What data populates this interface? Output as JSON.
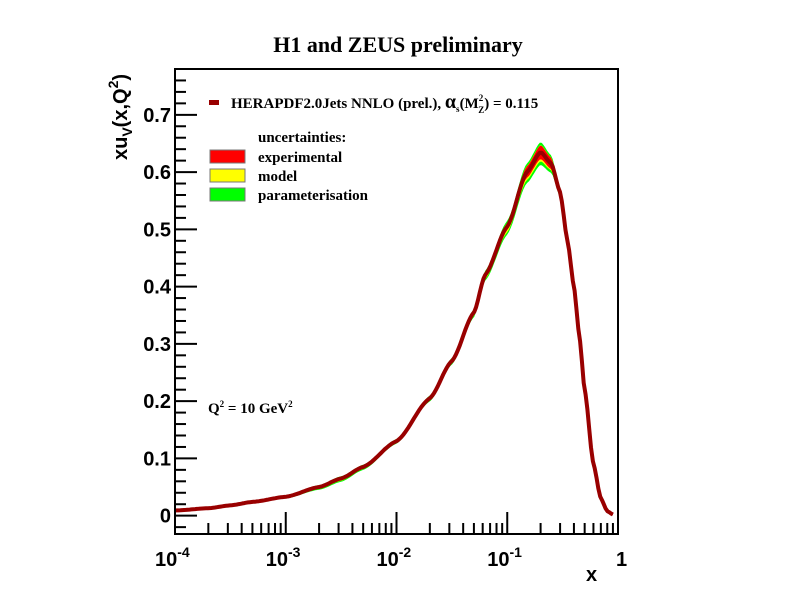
{
  "chart_data": {
    "type": "line",
    "title": "H1 and ZEUS preliminary",
    "xlabel": "x",
    "ylabel": "xu_V(x,Q^2)",
    "xscale": "log",
    "xlim": [
      0.0001,
      1
    ],
    "ylim": [
      -0.032,
      0.78
    ],
    "x_tick_labels": [
      {
        "value": 0.0001,
        "base": "10",
        "exp": "-4"
      },
      {
        "value": 0.001,
        "base": "10",
        "exp": "-3"
      },
      {
        "value": 0.01,
        "base": "10",
        "exp": "-2"
      },
      {
        "value": 0.1,
        "base": "10",
        "exp": "-1"
      },
      {
        "value": 1,
        "base": "1",
        "exp": ""
      }
    ],
    "y_ticks": [
      0,
      0.1,
      0.2,
      0.3,
      0.4,
      0.5,
      0.6,
      0.7
    ],
    "y_tick_labels": [
      "0",
      "0.1",
      "0.2",
      "0.3",
      "0.4",
      "0.5",
      "0.6",
      "0.7"
    ],
    "grid": false,
    "legend_position": "top-left",
    "legend": {
      "central_label_main": "HERAPDF2.0Jets NNLO (prel.), ",
      "central_label_alpha": "α",
      "central_label_sub_s": "s",
      "central_label_mz": "(M",
      "central_label_mz_sup": "2",
      "central_label_mz_sub": "Z",
      "central_label_tail": ") = 0.115",
      "uncertainties_header": "uncertainties:",
      "entries": [
        {
          "name": "experimental",
          "color": "#ff0000"
        },
        {
          "name": "model",
          "color": "#ffff00"
        },
        {
          "name": "parameterisation",
          "color": "#00ff00"
        }
      ]
    },
    "annotation": {
      "text_q": "Q",
      "sup1": "2",
      "text_mid": " = 10 GeV",
      "sup2": "2"
    },
    "colors": {
      "central": "#990000",
      "experimental": "#ff0000",
      "model": "#ffff00",
      "parameterisation": "#00ff00"
    },
    "series": [
      {
        "name": "central",
        "x": [
          0.0001,
          0.0002,
          0.000316,
          0.0005,
          0.001,
          0.002,
          0.00316,
          0.005,
          0.01,
          0.02,
          0.0316,
          0.05,
          0.063,
          0.1,
          0.15,
          0.2,
          0.25,
          0.3,
          0.35,
          0.4,
          0.45,
          0.5,
          0.6,
          0.7,
          0.8,
          0.9
        ],
        "y": [
          0.009,
          0.013,
          0.018,
          0.024,
          0.033,
          0.05,
          0.065,
          0.085,
          0.13,
          0.205,
          0.27,
          0.355,
          0.42,
          0.505,
          0.6,
          0.635,
          0.615,
          0.565,
          0.48,
          0.4,
          0.31,
          0.22,
          0.09,
          0.03,
          0.008,
          0.002
        ]
      },
      {
        "name": "experimental_band_halfwidth",
        "x": [
          0.0001,
          0.001,
          0.01,
          0.05,
          0.1,
          0.15,
          0.2,
          0.25,
          0.3,
          0.4,
          0.9
        ],
        "y": [
          0.001,
          0.001,
          0.002,
          0.003,
          0.006,
          0.01,
          0.012,
          0.01,
          0.006,
          0.003,
          0.001
        ]
      },
      {
        "name": "model_band_lower_offset",
        "x": [
          0.0001,
          0.001,
          0.003,
          0.01,
          0.03,
          0.05,
          0.1,
          0.15,
          0.2,
          0.25,
          0.3,
          0.4,
          0.9
        ],
        "y": [
          0.0,
          0.002,
          0.004,
          0.003,
          0.004,
          0.006,
          0.01,
          0.014,
          0.016,
          0.012,
          0.006,
          0.002,
          0.0
        ]
      },
      {
        "name": "parameterisation_band_offset",
        "x": [
          0.0001,
          0.001,
          0.003,
          0.01,
          0.05,
          0.1,
          0.2,
          0.3,
          0.9
        ],
        "y": [
          0.001,
          0.003,
          0.005,
          0.004,
          0.007,
          0.012,
          0.018,
          0.008,
          0.0
        ]
      }
    ]
  }
}
